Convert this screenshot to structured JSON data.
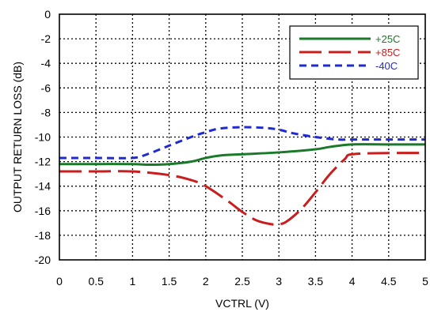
{
  "chart_data": {
    "type": "line",
    "xlabel": "VCTRL (V)",
    "ylabel": "OUTPUT RETURN LOSS (dB)",
    "xlim": [
      0,
      5
    ],
    "ylim": [
      -20,
      0
    ],
    "x_ticks": [
      "0",
      "0.5",
      "1",
      "1.5",
      "2",
      "2.5",
      "3",
      "3.5",
      "4",
      "4.5",
      "5"
    ],
    "y_ticks": [
      "0",
      "-2",
      "-4",
      "-6",
      "-8",
      "-10",
      "-12",
      "-14",
      "-16",
      "-18",
      "-20"
    ],
    "grid": true,
    "legend_position": "top-right",
    "series": [
      {
        "name": "+25C",
        "color": "#1a7a2a",
        "dash": "solid",
        "x": [
          0,
          0.5,
          1,
          1.2,
          1.5,
          1.8,
          2,
          2.2,
          2.5,
          3,
          3.5,
          3.7,
          4,
          4.5,
          5
        ],
        "y": [
          -12.2,
          -12.2,
          -12.2,
          -12.25,
          -12.2,
          -12.0,
          -11.7,
          -11.5,
          -11.4,
          -11.25,
          -11.0,
          -10.8,
          -10.6,
          -10.6,
          -10.6
        ]
      },
      {
        "name": "+85C",
        "color": "#c81e1e",
        "dash": "long",
        "x": [
          0,
          0.5,
          1,
          1.5,
          1.8,
          2,
          2.3,
          2.5,
          2.7,
          2.9,
          3,
          3.1,
          3.3,
          3.5,
          3.7,
          3.9,
          4,
          4.5,
          5
        ],
        "y": [
          -12.8,
          -12.8,
          -12.8,
          -13.1,
          -13.5,
          -14.0,
          -15.2,
          -16.1,
          -16.8,
          -17.1,
          -17.1,
          -16.9,
          -15.9,
          -14.5,
          -13.0,
          -11.8,
          -11.4,
          -11.3,
          -11.3
        ]
      },
      {
        "name": "-40C",
        "color": "#1f2bd0",
        "dash": "short",
        "x": [
          0,
          0.5,
          1,
          1.2,
          1.5,
          1.8,
          2,
          2.2,
          2.5,
          2.8,
          3,
          3.2,
          3.5,
          3.8,
          4,
          4.5,
          5
        ],
        "y": [
          -11.7,
          -11.7,
          -11.7,
          -11.4,
          -10.7,
          -10.0,
          -9.6,
          -9.3,
          -9.2,
          -9.25,
          -9.4,
          -9.7,
          -10.0,
          -10.2,
          -10.2,
          -10.2,
          -10.2
        ]
      }
    ]
  }
}
